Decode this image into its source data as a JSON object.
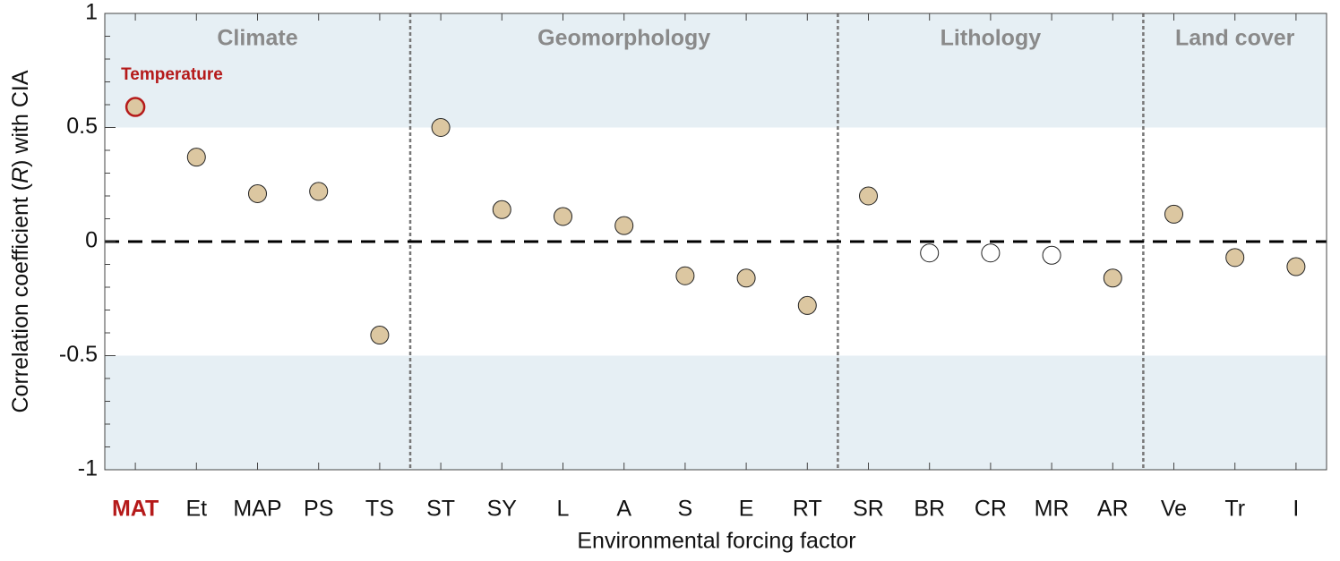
{
  "chart_data": {
    "type": "scatter",
    "ylabel_parts": [
      "Correlation coefficient (",
      "R",
      ") with CIA"
    ],
    "xlabel": "Environmental forcing factor",
    "categories": [
      "MAT",
      "Et",
      "MAP",
      "PS",
      "TS",
      "ST",
      "SY",
      "L",
      "A",
      "S",
      "E",
      "RT",
      "SR",
      "BR",
      "CR",
      "MR",
      "AR",
      "Ve",
      "Tr",
      "I"
    ],
    "values": [
      0.59,
      0.37,
      0.21,
      0.22,
      -0.41,
      0.5,
      0.14,
      0.11,
      0.07,
      -0.15,
      -0.16,
      -0.28,
      0.2,
      -0.05,
      -0.05,
      -0.06,
      -0.16,
      0.12,
      -0.07,
      -0.11
    ],
    "point_colors": [
      "#dcc7a1",
      "#dcc7a1",
      "#dcc7a1",
      "#dcc7a1",
      "#dcc7a1",
      "#dcc7a1",
      "#dcc7a1",
      "#dcc7a1",
      "#dcc7a1",
      "#dcc7a1",
      "#dcc7a1",
      "#dcc7a1",
      "#dcc7a1",
      "#ffffff",
      "#ffffff",
      "#ffffff",
      "#dcc7a1",
      "#dcc7a1",
      "#dcc7a1",
      "#dcc7a1"
    ],
    "highlight": {
      "index": 0,
      "label": "Temperature",
      "color": "#b51a1a"
    },
    "groups": [
      {
        "name": "Climate",
        "size": 5
      },
      {
        "name": "Geomorphology",
        "size": 7
      },
      {
        "name": "Lithology",
        "size": 5
      },
      {
        "name": "Land cover",
        "size": 3
      }
    ],
    "shaded_bands": [
      [
        0.5,
        1
      ],
      [
        -1,
        -0.5
      ]
    ],
    "shade_color": "#e6eff4",
    "reference_line": 0,
    "ylim": [
      -1,
      1
    ],
    "yticks": [
      -1,
      -0.5,
      0,
      0.5,
      1
    ],
    "yminor_step": 0.1
  }
}
